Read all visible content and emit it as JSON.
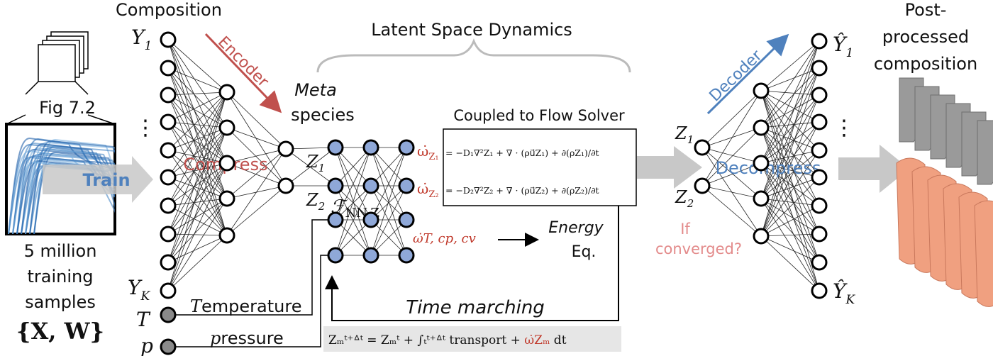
{
  "labels": {
    "composition": "Composition",
    "latent_space": "Latent Space Dynamics",
    "post_processed_1": "Post-",
    "post_processed_2": "processed",
    "post_processed_3": "composition",
    "fig_ref": "Fig 7.2",
    "train": "Train",
    "samples_1": "5 million",
    "samples_2": "training",
    "samples_3": "samples",
    "samples_set": "{X, W}",
    "encoder": "Encoder",
    "decoder": "Decoder",
    "compress": "Compress",
    "decompress": "Decompress",
    "meta_1": "Meta",
    "meta_2": "species",
    "coupled": "Coupled to Flow Solver",
    "energy_1": "Energy",
    "energy_2": "Eq.",
    "converged_1": "If",
    "converged_2": "converged?",
    "time_marching": "Time marching",
    "temperature_rest": "emperature",
    "pressure_rest": "ressure"
  },
  "symbols": {
    "y1": "Y",
    "y1_sub": "1",
    "yk": "Y",
    "yk_sub": "K",
    "yhat1": "Ŷ",
    "yhat1_sub": "1",
    "yhatk": "Ŷ",
    "yhatk_sub": "K",
    "t": "T",
    "p": "p",
    "t_lead": "T",
    "p_lead": "p",
    "z1": "Z",
    "z1_sub": "1",
    "z2": "Z",
    "z2_sub": "2",
    "z1_dec": "Z",
    "z1_dec_sub": "1",
    "z2_dec": "Z",
    "z2_dec_sub": "2",
    "fnn": "ℱ",
    "fnn_sub": "NN,Z",
    "vdots": "⋮",
    "omega_z1": "ω̇",
    "omega_z1_sub": "Z₁",
    "omega_z2": "ω̇",
    "omega_z2_sub": "Z₂",
    "omega_t": "ω̇T,  cp,  cv"
  },
  "equations": {
    "eq1": "= −D₁∇²Z₁ + ∇ · (ρu⃗Z₁) + ∂(ρZ₁)/∂t",
    "eq2": "= −D₂∇²Z₂ + ∇ · (ρu⃗Z₂) + ∂(ρZ₂)/∂t",
    "time_eq_lhs": "Zₘᵗ⁺ᐞᵗ = Zₘᵗ + ∫ₜᵗ⁺ᐞᵗ transport + ",
    "time_eq_omega": "ω̇Zₘ",
    "time_eq_dt": " dt"
  },
  "colors": {
    "red_label": "#c0504d",
    "blue_label": "#4f81bd",
    "pink_text": "#e38b8b",
    "blue_node": "#8fa8d8",
    "gray_node": "#8a8a8a",
    "gray_arrow": "#c8c8c8",
    "eq_box_fill": "#e6e6e6"
  }
}
